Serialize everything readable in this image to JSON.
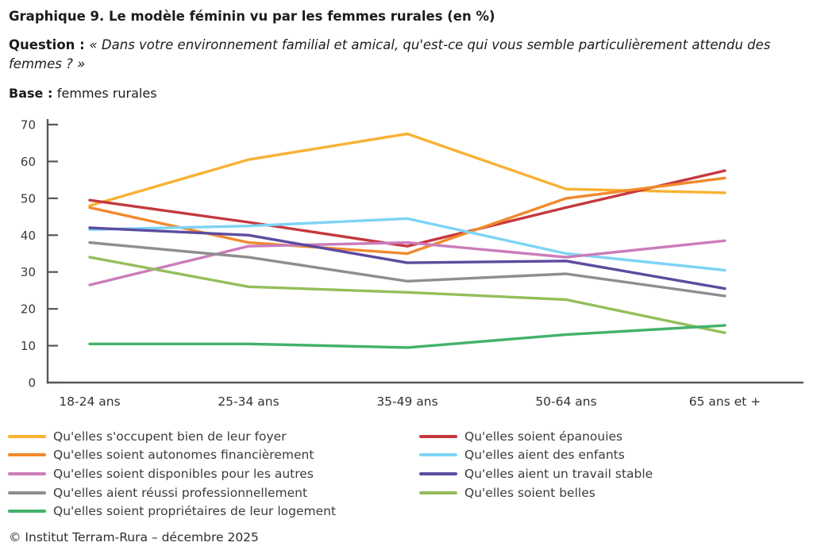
{
  "header": {
    "prefix": "Graphique 9.",
    "rest": " Le modèle féminin vu par les femmes rurales (en %)"
  },
  "question": {
    "label": "Question : ",
    "text": "« Dans votre environnement familial et amical, qu'est-ce qui vous semble particulièrement attendu des femmes ? »"
  },
  "base": {
    "label": "Base : ",
    "text": "femmes rurales"
  },
  "chart_data": {
    "type": "line",
    "categories": [
      "18-24 ans",
      "25-34 ans",
      "35-49 ans",
      "50-64 ans",
      "65 ans et +"
    ],
    "series": [
      {
        "name": "Qu'elles s'occupent bien de leur foyer",
        "color": "#F9B233",
        "values": [
          48,
          60.5,
          67.5,
          52.5,
          51.5
        ]
      },
      {
        "name": "Qu'elles soient épanouies",
        "color": "#C4393D",
        "values": [
          49.5,
          43.5,
          37,
          47.5,
          57.5
        ]
      },
      {
        "name": "Qu'elles soient autonomes financièrement",
        "color": "#F1892D",
        "values": [
          47.5,
          38,
          35,
          50,
          55.5
        ]
      },
      {
        "name": "Qu'elles aient des enfants",
        "color": "#7DD4F5",
        "values": [
          41.5,
          42.5,
          44.5,
          35,
          30.5
        ]
      },
      {
        "name": "Qu'elles soient disponibles pour les autres",
        "color": "#CB7CBA",
        "values": [
          26.5,
          37,
          38,
          34,
          38.5
        ]
      },
      {
        "name": "Qu'elles aient un travail stable",
        "color": "#5C4B9F",
        "values": [
          42,
          40,
          32.5,
          33,
          25.5
        ]
      },
      {
        "name": "Qu'elles aient réussi professionnellement",
        "color": "#8E8E90",
        "values": [
          38,
          34,
          27.5,
          29.5,
          23.5
        ]
      },
      {
        "name": "Qu'elles soient belles",
        "color": "#95BE5B",
        "values": [
          34,
          26,
          24.5,
          22.5,
          13.5
        ]
      },
      {
        "name": "Qu'elles soient propriétaires de leur logement",
        "color": "#42B26A",
        "values": [
          10.5,
          10.5,
          9.5,
          13,
          15.5
        ]
      }
    ],
    "title": "Le modèle féminin vu par les femmes rurales (en %)",
    "xlabel": "",
    "ylabel": "",
    "ylim": [
      0,
      70
    ],
    "yticks": [
      0,
      10,
      20,
      30,
      40,
      50,
      60,
      70
    ],
    "grid": false,
    "legend_position": "bottom",
    "axis_color": "#56575B",
    "tick_label_color": "#3a3a3a"
  },
  "legend": {
    "columns": [
      [
        0,
        2,
        4,
        6,
        8
      ],
      [
        1,
        3,
        5,
        7
      ]
    ]
  },
  "footer": {
    "text": "© Institut Terram-Rura – décembre 2025"
  }
}
